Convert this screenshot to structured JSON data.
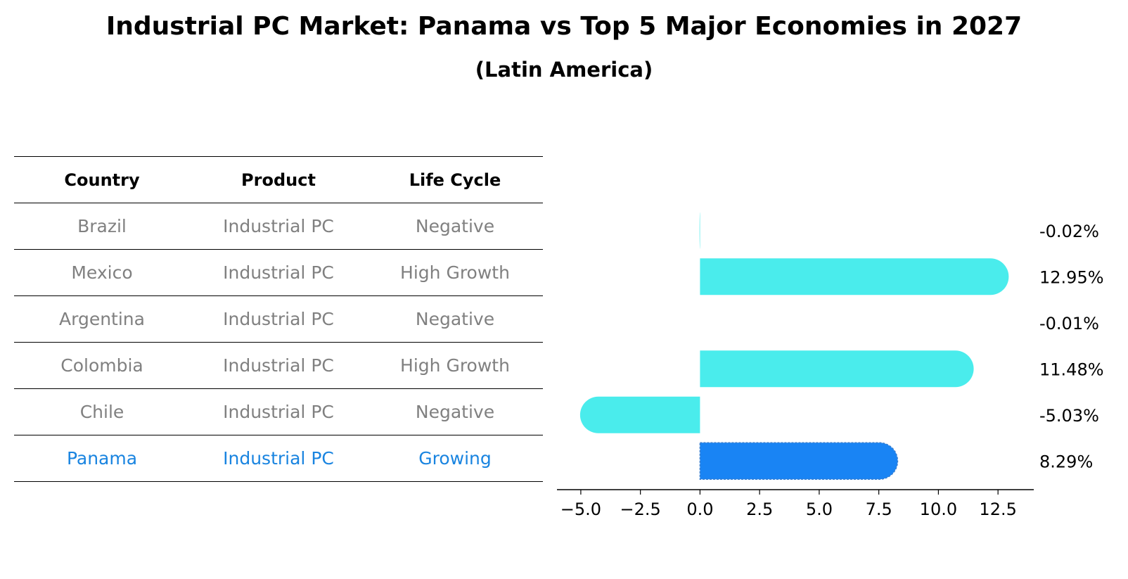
{
  "title": "Industrial PC Market: Panama vs Top 5 Major Economies in 2027",
  "subtitle": "(Latin America)",
  "table": {
    "headers": [
      "Country",
      "Product",
      "Life Cycle"
    ],
    "rows": [
      {
        "country": "Brazil",
        "product": "Industrial PC",
        "life_cycle": "Negative"
      },
      {
        "country": "Mexico",
        "product": "Industrial PC",
        "life_cycle": "High Growth"
      },
      {
        "country": "Argentina",
        "product": "Industrial PC",
        "life_cycle": "Negative"
      },
      {
        "country": "Colombia",
        "product": "Industrial PC",
        "life_cycle": "High Growth"
      },
      {
        "country": "Chile",
        "product": "Industrial PC",
        "life_cycle": "Negative"
      },
      {
        "country": "Panama",
        "product": "Industrial PC",
        "life_cycle": "Growing"
      }
    ]
  },
  "colors": {
    "bar": "#4aecec",
    "highlight_bar": "#1984f4",
    "highlight_text": "#1984e0",
    "muted_text": "#808080"
  },
  "chart_data": {
    "type": "bar",
    "orientation": "horizontal",
    "categories": [
      "Brazil",
      "Mexico",
      "Argentina",
      "Colombia",
      "Chile",
      "Panama"
    ],
    "values": [
      -0.02,
      12.95,
      -0.01,
      11.48,
      -5.03,
      8.29
    ],
    "data_labels": [
      "-0.02%",
      "12.95%",
      "-0.01%",
      "11.48%",
      "-5.03%",
      "8.29%"
    ],
    "highlight": "Panama",
    "xlim": [
      -6,
      14
    ],
    "xticks": [
      -5.0,
      -2.5,
      0.0,
      2.5,
      5.0,
      7.5,
      10.0,
      12.5
    ],
    "xtick_labels": [
      "−5.0",
      "−2.5",
      "0.0",
      "2.5",
      "5.0",
      "7.5",
      "10.0",
      "12.5"
    ],
    "xlabel": "",
    "ylabel": "",
    "grid": false
  }
}
